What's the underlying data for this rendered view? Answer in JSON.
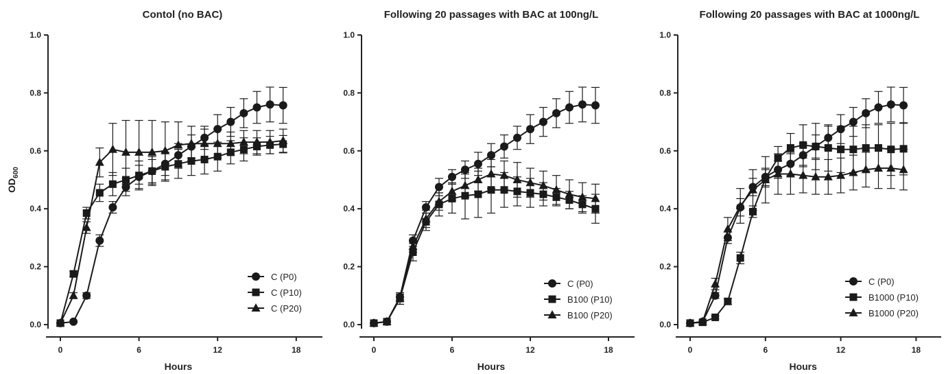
{
  "chart_data": [
    {
      "type": "line",
      "title": "Contol (no BAC)",
      "xlabel": "Hours",
      "ylabel_main": "OD",
      "ylabel_sub": "600",
      "xlim": [
        0,
        20
      ],
      "ylim": [
        0,
        1.0
      ],
      "xticks": [
        "0",
        "6",
        "12",
        "18"
      ],
      "yticks": [
        "0.0",
        "0.2",
        "0.4",
        "0.6",
        "0.8",
        "1.0"
      ],
      "legend_position": "bottom-right",
      "series": [
        {
          "name": "C (P0)",
          "marker": "circle",
          "x": [
            0,
            1,
            2,
            3,
            4,
            5,
            6,
            7,
            8,
            9,
            10,
            11,
            12,
            13,
            14,
            15,
            16,
            17
          ],
          "y": [
            0.005,
            0.01,
            0.1,
            0.29,
            0.405,
            0.475,
            0.51,
            0.53,
            0.555,
            0.585,
            0.615,
            0.645,
            0.675,
            0.7,
            0.73,
            0.75,
            0.76,
            0.757
          ],
          "err": [
            0,
            0,
            0.01,
            0.02,
            0.02,
            0.03,
            0.04,
            0.04,
            0.04,
            0.04,
            0.04,
            0.04,
            0.05,
            0.05,
            0.05,
            0.055,
            0.06,
            0.062
          ]
        },
        {
          "name": "C (P10)",
          "marker": "square",
          "x": [
            0,
            1,
            2,
            3,
            4,
            5,
            6,
            7,
            8,
            9,
            10,
            11,
            12,
            13,
            14,
            15,
            16,
            17
          ],
          "y": [
            0.005,
            0.175,
            0.385,
            0.455,
            0.485,
            0.5,
            0.515,
            0.53,
            0.545,
            0.555,
            0.565,
            0.57,
            0.58,
            0.595,
            0.605,
            0.615,
            0.62,
            0.623
          ],
          "err": [
            0,
            0.01,
            0.02,
            0.03,
            0.04,
            0.04,
            0.05,
            0.05,
            0.05,
            0.05,
            0.05,
            0.05,
            0.05,
            0.04,
            0.04,
            0.03,
            0.03,
            0.03
          ]
        },
        {
          "name": "C (P20)",
          "marker": "triangle",
          "x": [
            0,
            1,
            2,
            3,
            4,
            5,
            6,
            7,
            8,
            9,
            10,
            11,
            12,
            13,
            14,
            15,
            16,
            17
          ],
          "y": [
            0.005,
            0.1,
            0.335,
            0.56,
            0.605,
            0.595,
            0.595,
            0.595,
            0.6,
            0.62,
            0.625,
            0.625,
            0.625,
            0.625,
            0.63,
            0.63,
            0.63,
            0.635
          ],
          "err": [
            0,
            0.01,
            0.02,
            0.05,
            0.09,
            0.11,
            0.11,
            0.11,
            0.1,
            0.08,
            0.06,
            0.05,
            0.05,
            0.04,
            0.04,
            0.04,
            0.04,
            0.04
          ]
        }
      ]
    },
    {
      "type": "line",
      "title": "Following 20 passages with BAC at 100ng/L",
      "xlabel": "Hours",
      "xlim": [
        0,
        20
      ],
      "ylim": [
        0,
        1.0
      ],
      "xticks": [
        "0",
        "6",
        "12",
        "18"
      ],
      "yticks": [
        "0.0",
        "0.2",
        "0.4",
        "0.6",
        "0.8",
        "1.0"
      ],
      "legend_position": "bottom-right",
      "series": [
        {
          "name": "C (P0)",
          "marker": "circle",
          "x": [
            0,
            1,
            2,
            3,
            4,
            5,
            6,
            7,
            8,
            9,
            10,
            11,
            12,
            13,
            14,
            15,
            16,
            17
          ],
          "y": [
            0.005,
            0.01,
            0.095,
            0.29,
            0.405,
            0.475,
            0.51,
            0.535,
            0.555,
            0.585,
            0.615,
            0.645,
            0.675,
            0.7,
            0.73,
            0.75,
            0.76,
            0.757
          ],
          "err": [
            0,
            0,
            0.01,
            0.02,
            0.02,
            0.03,
            0.025,
            0.03,
            0.04,
            0.04,
            0.04,
            0.04,
            0.05,
            0.05,
            0.05,
            0.055,
            0.06,
            0.062
          ]
        },
        {
          "name": "B100 (P10)",
          "marker": "square",
          "x": [
            0,
            1,
            2,
            3,
            4,
            5,
            6,
            7,
            8,
            9,
            10,
            11,
            12,
            13,
            14,
            15,
            16,
            17
          ],
          "y": [
            0.005,
            0.01,
            0.09,
            0.25,
            0.355,
            0.415,
            0.435,
            0.445,
            0.45,
            0.465,
            0.465,
            0.46,
            0.455,
            0.45,
            0.44,
            0.43,
            0.415,
            0.4
          ],
          "err": [
            0,
            0,
            0.02,
            0.03,
            0.03,
            0.04,
            0.05,
            0.08,
            0.08,
            0.08,
            0.06,
            0.05,
            0.05,
            0.04,
            0.03,
            0.03,
            0.03,
            0.05
          ]
        },
        {
          "name": "B100 (P20)",
          "marker": "triangle",
          "x": [
            0,
            1,
            2,
            3,
            4,
            5,
            6,
            7,
            8,
            9,
            10,
            11,
            12,
            13,
            14,
            15,
            16,
            17
          ],
          "y": [
            0.005,
            0.01,
            0.09,
            0.27,
            0.365,
            0.425,
            0.46,
            0.48,
            0.5,
            0.52,
            0.515,
            0.5,
            0.49,
            0.48,
            0.465,
            0.45,
            0.44,
            0.435
          ],
          "err": [
            0,
            0,
            0.02,
            0.02,
            0.03,
            0.03,
            0.03,
            0.04,
            0.04,
            0.05,
            0.05,
            0.06,
            0.05,
            0.05,
            0.05,
            0.05,
            0.05,
            0.05
          ]
        }
      ]
    },
    {
      "type": "line",
      "title": "Following 20 passages with BAC at 1000ng/L",
      "xlabel": "Hours",
      "xlim": [
        0,
        20
      ],
      "ylim": [
        0,
        1.0
      ],
      "xticks": [
        "0",
        "6",
        "12",
        "18"
      ],
      "yticks": [
        "0.0",
        "0.2",
        "0.4",
        "0.6",
        "0.8",
        "1.0"
      ],
      "legend_position": "bottom-right",
      "series": [
        {
          "name": "C (P0)",
          "marker": "circle",
          "x": [
            0,
            1,
            2,
            3,
            4,
            5,
            6,
            7,
            8,
            9,
            10,
            11,
            12,
            13,
            14,
            15,
            16,
            17
          ],
          "y": [
            0.005,
            0.01,
            0.1,
            0.3,
            0.405,
            0.475,
            0.51,
            0.535,
            0.555,
            0.585,
            0.615,
            0.645,
            0.675,
            0.7,
            0.73,
            0.75,
            0.76,
            0.757
          ],
          "err": [
            0,
            0,
            0.01,
            0.02,
            0.03,
            0.03,
            0.03,
            0.03,
            0.04,
            0.04,
            0.04,
            0.04,
            0.05,
            0.05,
            0.05,
            0.055,
            0.06,
            0.062
          ]
        },
        {
          "name": "B1000 (P10)",
          "marker": "square",
          "x": [
            0,
            1,
            2,
            3,
            4,
            5,
            6,
            7,
            8,
            9,
            10,
            11,
            12,
            13,
            14,
            15,
            16,
            17
          ],
          "y": [
            0.005,
            0.008,
            0.025,
            0.08,
            0.23,
            0.39,
            0.505,
            0.575,
            0.61,
            0.62,
            0.615,
            0.61,
            0.605,
            0.605,
            0.61,
            0.61,
            0.605,
            0.607
          ],
          "err": [
            0,
            0,
            0.005,
            0.01,
            0.02,
            0.02,
            0.03,
            0.04,
            0.05,
            0.07,
            0.08,
            0.08,
            0.08,
            0.08,
            0.08,
            0.08,
            0.09,
            0.09
          ]
        },
        {
          "name": "B1000 (P20)",
          "marker": "triangle",
          "x": [
            0,
            1,
            2,
            3,
            4,
            5,
            6,
            7,
            8,
            9,
            10,
            11,
            12,
            13,
            14,
            15,
            16,
            17
          ],
          "y": [
            0.005,
            0.01,
            0.14,
            0.33,
            0.41,
            0.465,
            0.5,
            0.52,
            0.52,
            0.515,
            0.51,
            0.51,
            0.515,
            0.525,
            0.535,
            0.54,
            0.54,
            0.535
          ],
          "err": [
            0,
            0,
            0.02,
            0.04,
            0.06,
            0.07,
            0.08,
            0.07,
            0.07,
            0.06,
            0.06,
            0.06,
            0.06,
            0.06,
            0.06,
            0.07,
            0.07,
            0.07
          ]
        }
      ]
    }
  ]
}
